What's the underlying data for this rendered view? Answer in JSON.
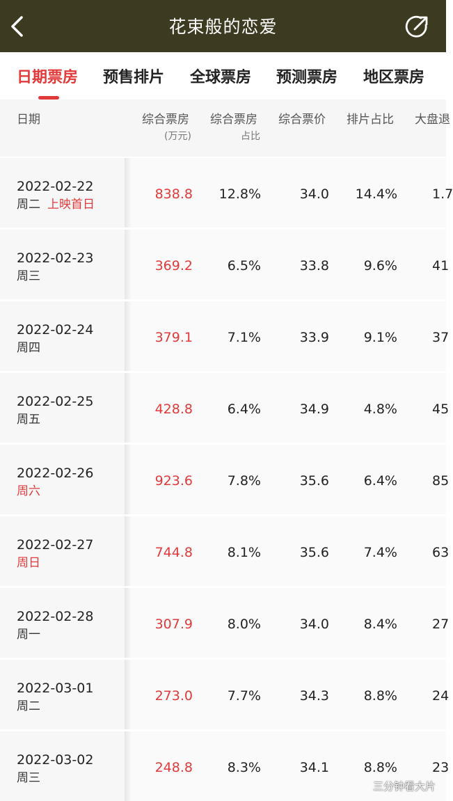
{
  "nav": {
    "title": "花束般的恋爱",
    "back_icon": "chevron-left-icon",
    "share_icon": "share-icon"
  },
  "tabs": [
    {
      "label": "日期票房",
      "active": true
    },
    {
      "label": "预售排片",
      "active": false
    },
    {
      "label": "全球票房",
      "active": false
    },
    {
      "label": "预测票房",
      "active": false
    },
    {
      "label": "地区票房",
      "active": false
    }
  ],
  "columns": [
    {
      "label": "日期",
      "sub": ""
    },
    {
      "label": "综合票房",
      "sub": "(万元)"
    },
    {
      "label": "综合票房",
      "sub": "占比"
    },
    {
      "label": "综合票价",
      "sub": ""
    },
    {
      "label": "排片占比",
      "sub": ""
    },
    {
      "label": "大盘退",
      "sub": ""
    }
  ],
  "rows": [
    {
      "date": "2022-02-22",
      "weekday": "周二",
      "weekend": false,
      "tag": "上映首日",
      "box_office": "838.8",
      "box_share": "12.8%",
      "avg_price": "34.0",
      "screening_share": "14.4%",
      "last": "1.7"
    },
    {
      "date": "2022-02-23",
      "weekday": "周三",
      "weekend": false,
      "tag": "",
      "box_office": "369.2",
      "box_share": "6.5%",
      "avg_price": "33.8",
      "screening_share": "9.6%",
      "last": "41"
    },
    {
      "date": "2022-02-24",
      "weekday": "周四",
      "weekend": false,
      "tag": "",
      "box_office": "379.1",
      "box_share": "7.1%",
      "avg_price": "33.9",
      "screening_share": "9.1%",
      "last": "37"
    },
    {
      "date": "2022-02-25",
      "weekday": "周五",
      "weekend": false,
      "tag": "",
      "box_office": "428.8",
      "box_share": "6.4%",
      "avg_price": "34.9",
      "screening_share": "4.8%",
      "last": "45"
    },
    {
      "date": "2022-02-26",
      "weekday": "周六",
      "weekend": true,
      "tag": "",
      "box_office": "923.6",
      "box_share": "7.8%",
      "avg_price": "35.6",
      "screening_share": "6.4%",
      "last": "85"
    },
    {
      "date": "2022-02-27",
      "weekday": "周日",
      "weekend": true,
      "tag": "",
      "box_office": "744.8",
      "box_share": "8.1%",
      "avg_price": "35.6",
      "screening_share": "7.4%",
      "last": "63"
    },
    {
      "date": "2022-02-28",
      "weekday": "周一",
      "weekend": false,
      "tag": "",
      "box_office": "307.9",
      "box_share": "8.0%",
      "avg_price": "34.0",
      "screening_share": "8.4%",
      "last": "27"
    },
    {
      "date": "2022-03-01",
      "weekday": "周二",
      "weekend": false,
      "tag": "",
      "box_office": "273.0",
      "box_share": "7.7%",
      "avg_price": "34.3",
      "screening_share": "8.8%",
      "last": "24"
    },
    {
      "date": "2022-03-02",
      "weekday": "周三",
      "weekend": false,
      "tag": "",
      "box_office": "248.8",
      "box_share": "8.3%",
      "avg_price": "34.1",
      "screening_share": "8.8%",
      "last": "23"
    }
  ],
  "watermark": "三分钟看大片",
  "colors": {
    "topbar": "#3c3a21",
    "accent": "#e23a3a",
    "header_bg": "#f6f6f6"
  }
}
